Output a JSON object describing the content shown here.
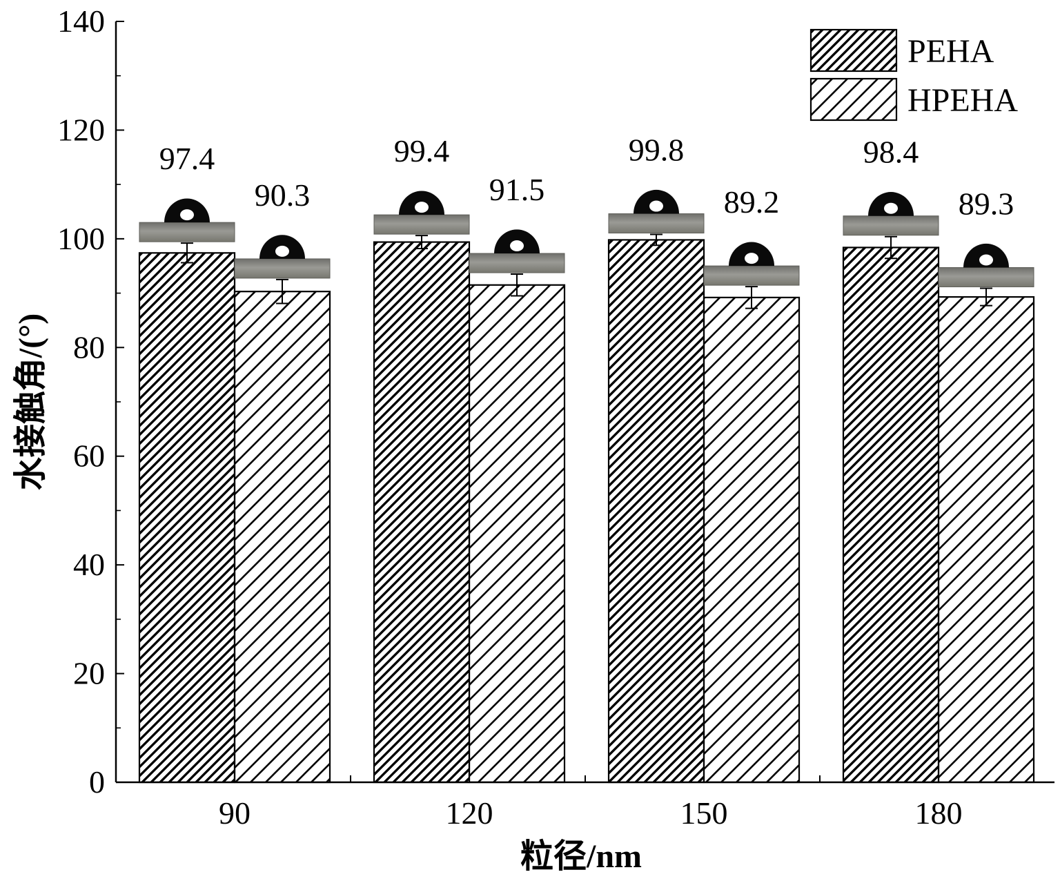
{
  "chart_data": {
    "type": "bar",
    "xlabel": "粒径/nm",
    "ylabel": "水接触角/(°)",
    "ylim": [
      0,
      140
    ],
    "yticks": [
      0,
      20,
      40,
      60,
      80,
      100,
      120,
      140
    ],
    "categories": [
      "90",
      "120",
      "150",
      "180"
    ],
    "series": [
      {
        "name": "PEHA",
        "pattern": "dense-hatch",
        "values": [
          97.4,
          99.4,
          99.8,
          98.4
        ],
        "errors": [
          1.8,
          1.2,
          1.0,
          2.0
        ],
        "labels": [
          "97.4",
          "99.4",
          "99.8",
          "98.4"
        ]
      },
      {
        "name": "HPEHA",
        "pattern": "sparse-hatch",
        "values": [
          90.3,
          91.5,
          89.2,
          89.3
        ],
        "errors": [
          2.2,
          2.0,
          2.0,
          1.6
        ],
        "labels": [
          "90.3",
          "91.5",
          "89.2",
          "89.3"
        ]
      }
    ],
    "legend_position": "top-right",
    "grid": false,
    "annotations": "water droplet contact-angle photo above each bar",
    "colors": {
      "stroke": "#000000",
      "fill": "#ffffff",
      "substrate": "#8a8a86",
      "droplet": "#0a0a0a"
    }
  }
}
